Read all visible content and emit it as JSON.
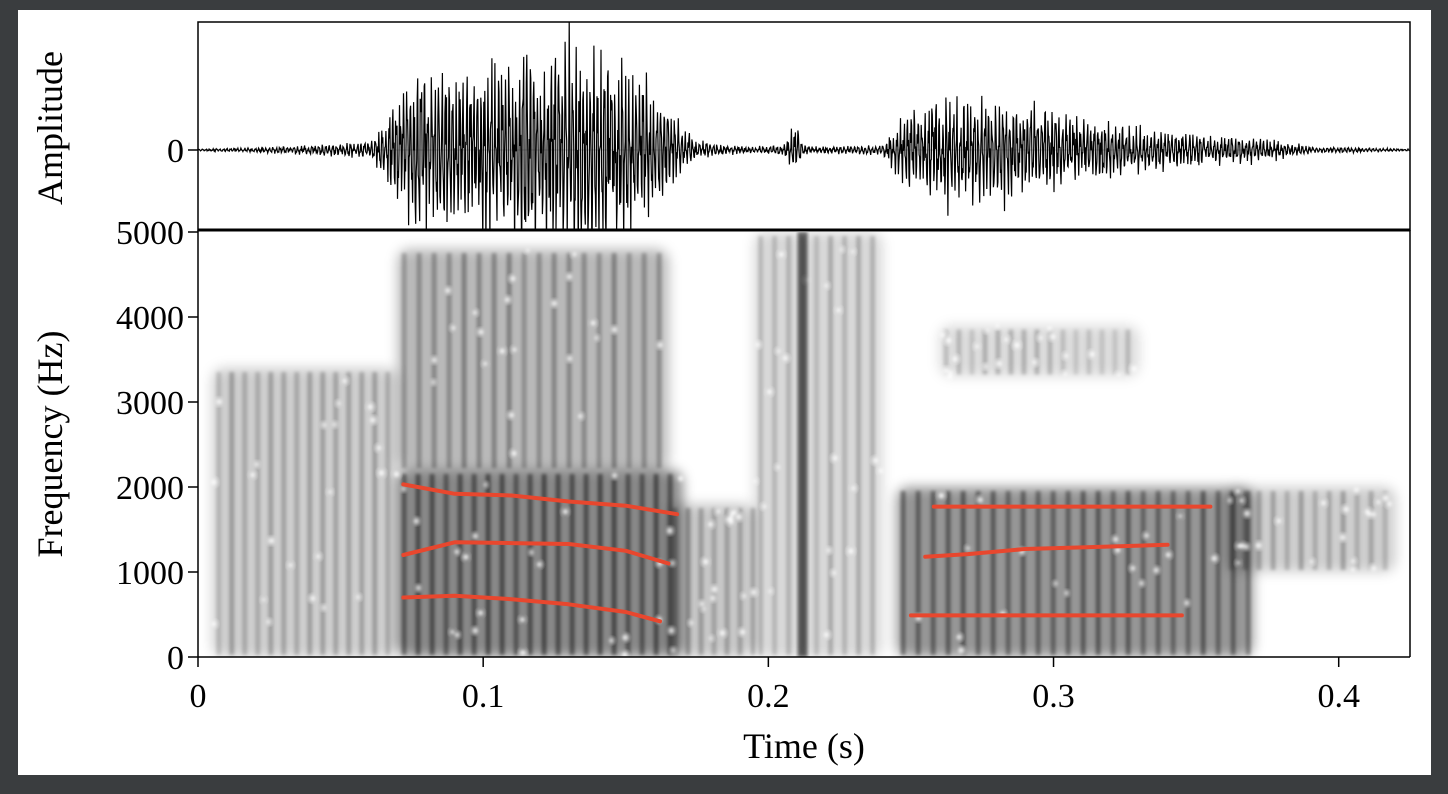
{
  "colors": {
    "frame": "#3a3d3f",
    "background": "#ffffff",
    "waveform": "#000000",
    "spectrogram": "#000000",
    "formant": "#e8472e"
  },
  "chart_data": [
    {
      "type": "line",
      "panel": "waveform",
      "ylabel": "Amplitude",
      "y_ticks": [
        "0"
      ],
      "xlim": [
        0,
        0.425
      ],
      "envelope": {
        "t": [
          0,
          0.02,
          0.045,
          0.06,
          0.065,
          0.07,
          0.08,
          0.1,
          0.12,
          0.13,
          0.14,
          0.155,
          0.165,
          0.175,
          0.19,
          0.205,
          0.21,
          0.212,
          0.215,
          0.24,
          0.25,
          0.26,
          0.28,
          0.3,
          0.33,
          0.36,
          0.37,
          0.38,
          0.39,
          0.425
        ],
        "amp": [
          0.01,
          0.02,
          0.05,
          0.07,
          0.2,
          0.5,
          0.75,
          0.8,
          0.9,
          1.0,
          0.85,
          0.65,
          0.4,
          0.08,
          0.03,
          0.04,
          0.25,
          0.05,
          0.03,
          0.04,
          0.4,
          0.5,
          0.48,
          0.35,
          0.2,
          0.12,
          0.12,
          0.08,
          0.03,
          0.01
        ]
      }
    },
    {
      "type": "heatmap",
      "panel": "spectrogram",
      "xlabel": "Time (s)",
      "ylabel": "Frequency (Hz)",
      "xlim": [
        0,
        0.425
      ],
      "ylim": [
        0,
        5000
      ],
      "x_ticks": [
        0,
        0.1,
        0.2,
        0.3,
        0.4
      ],
      "x_tick_labels": [
        "0",
        "0.1",
        "0.2",
        "0.3",
        "0.4"
      ],
      "y_ticks": [
        0,
        1000,
        2000,
        3000,
        4000,
        5000
      ],
      "y_tick_labels": [
        "0",
        "1000",
        "2000",
        "3000",
        "4000",
        "5000"
      ],
      "energy_regions": [
        {
          "t0": 0.005,
          "t1": 0.07,
          "f0": 0,
          "f1": 3400,
          "level": 0.35
        },
        {
          "t0": 0.07,
          "t1": 0.17,
          "f0": 0,
          "f1": 2200,
          "level": 0.85
        },
        {
          "t0": 0.07,
          "t1": 0.165,
          "f0": 2200,
          "f1": 4800,
          "level": 0.5
        },
        {
          "t0": 0.165,
          "t1": 0.195,
          "f0": 0,
          "f1": 1800,
          "level": 0.4
        },
        {
          "t0": 0.195,
          "t1": 0.24,
          "f0": 0,
          "f1": 5000,
          "level": 0.28
        },
        {
          "t0": 0.245,
          "t1": 0.37,
          "f0": 0,
          "f1": 2000,
          "level": 0.75
        },
        {
          "t0": 0.26,
          "t1": 0.33,
          "f0": 3300,
          "f1": 3900,
          "level": 0.25
        },
        {
          "t0": 0.36,
          "t1": 0.42,
          "f0": 1000,
          "f1": 2000,
          "level": 0.35
        }
      ],
      "burst": {
        "t": 0.212,
        "f0": 0,
        "f1": 5000
      },
      "formant_tracks": [
        {
          "name": "F1-segment1",
          "t": [
            0.072,
            0.09,
            0.11,
            0.13,
            0.15,
            0.162
          ],
          "f": [
            700,
            720,
            680,
            620,
            530,
            420
          ]
        },
        {
          "name": "F2-segment1",
          "t": [
            0.072,
            0.09,
            0.11,
            0.13,
            0.15,
            0.165
          ],
          "f": [
            1200,
            1350,
            1340,
            1330,
            1250,
            1100
          ]
        },
        {
          "name": "F3-segment1",
          "t": [
            0.072,
            0.09,
            0.11,
            0.13,
            0.15,
            0.168
          ],
          "f": [
            2030,
            1920,
            1900,
            1830,
            1780,
            1680
          ]
        },
        {
          "name": "F1-segment2",
          "t": [
            0.25,
            0.3,
            0.345
          ],
          "f": [
            490,
            490,
            490
          ]
        },
        {
          "name": "F2-segment2",
          "t": [
            0.255,
            0.27,
            0.29,
            0.31,
            0.34
          ],
          "f": [
            1180,
            1210,
            1270,
            1290,
            1320
          ]
        },
        {
          "name": "F3-segment2",
          "t": [
            0.258,
            0.3,
            0.355
          ],
          "f": [
            1770,
            1770,
            1770
          ]
        }
      ]
    }
  ]
}
